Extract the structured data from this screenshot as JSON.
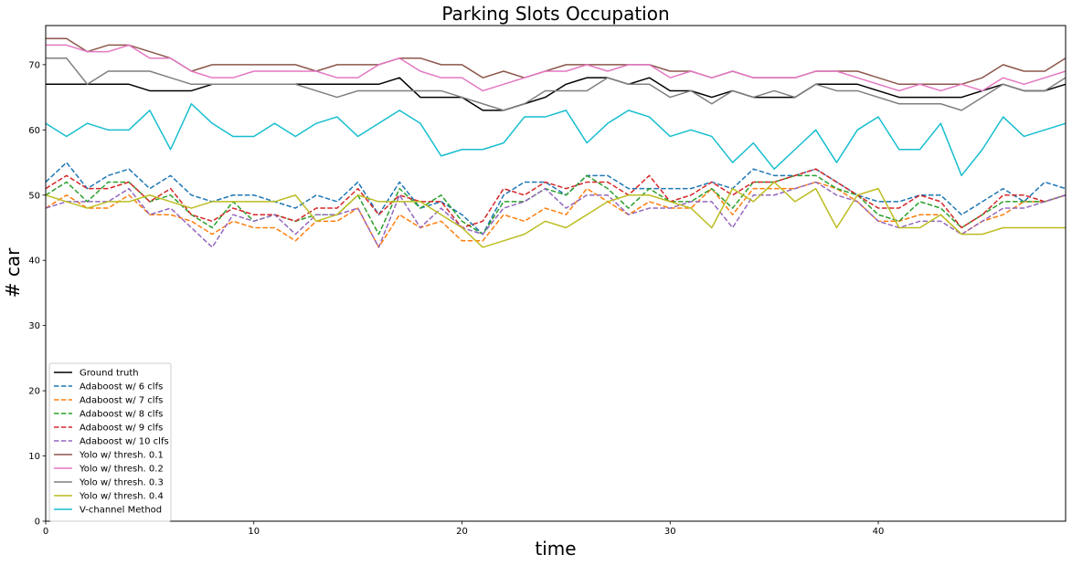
{
  "chart_data": {
    "type": "line",
    "title": "Parking Slots Occupation",
    "xlabel": "time",
    "ylabel": "# car",
    "xlim": [
      0,
      49
    ],
    "ylim": [
      0,
      76
    ],
    "xticks": [
      0,
      10,
      20,
      30,
      40
    ],
    "yticks": [
      0,
      10,
      20,
      30,
      40,
      50,
      60,
      70
    ],
    "grid": false,
    "legend_position": "lower-left",
    "x": [
      0,
      1,
      2,
      3,
      4,
      5,
      6,
      7,
      8,
      9,
      10,
      11,
      12,
      13,
      14,
      15,
      16,
      17,
      18,
      19,
      20,
      21,
      22,
      23,
      24,
      25,
      26,
      27,
      28,
      29,
      30,
      31,
      32,
      33,
      34,
      35,
      36,
      37,
      38,
      39,
      40,
      41,
      42,
      43,
      44,
      45,
      46,
      47,
      48,
      49
    ],
    "series": [
      {
        "name": "Ground truth",
        "color": "#000000",
        "dash": "solid",
        "values": [
          67,
          67,
          67,
          67,
          67,
          66,
          66,
          66,
          67,
          67,
          67,
          67,
          67,
          67,
          67,
          67,
          67,
          68,
          65,
          65,
          65,
          63,
          63,
          64,
          65,
          67,
          68,
          68,
          67,
          68,
          66,
          66,
          65,
          66,
          65,
          65,
          65,
          67,
          67,
          67,
          66,
          65,
          65,
          65,
          65,
          66,
          67,
          66,
          66,
          67
        ]
      },
      {
        "name": "Adaboost w/ 6 clfs",
        "color": "#1f77b4",
        "dash": "dashed",
        "values": [
          52,
          55,
          51,
          53,
          54,
          51,
          53,
          50,
          49,
          50,
          50,
          49,
          48,
          50,
          49,
          52,
          47,
          52,
          48,
          49,
          47,
          44,
          50,
          52,
          52,
          50,
          53,
          53,
          51,
          51,
          51,
          51,
          52,
          51,
          54,
          53,
          53,
          54,
          52,
          50,
          49,
          49,
          50,
          50,
          47,
          49,
          51,
          49,
          52,
          51
        ]
      },
      {
        "name": "Adaboost w/ 7 clfs",
        "color": "#ff7f0e",
        "dash": "dashed",
        "values": [
          48,
          50,
          48,
          48,
          50,
          47,
          47,
          46,
          44,
          46,
          45,
          45,
          43,
          46,
          46,
          48,
          42,
          47,
          45,
          46,
          43,
          43,
          47,
          46,
          48,
          47,
          51,
          49,
          47,
          49,
          48,
          48,
          51,
          47,
          51,
          51,
          51,
          52,
          51,
          49,
          46,
          46,
          47,
          47,
          44,
          46,
          47,
          49,
          49,
          50
        ]
      },
      {
        "name": "Adaboost w/ 8 clfs",
        "color": "#2ca02c",
        "dash": "dashed",
        "values": [
          50,
          52,
          49,
          52,
          52,
          49,
          50,
          47,
          45,
          49,
          46,
          47,
          46,
          47,
          47,
          50,
          44,
          51,
          48,
          50,
          46,
          44,
          49,
          49,
          51,
          50,
          53,
          51,
          48,
          51,
          49,
          49,
          51,
          48,
          52,
          52,
          53,
          53,
          51,
          50,
          47,
          46,
          49,
          48,
          45,
          47,
          49,
          49,
          49,
          50
        ]
      },
      {
        "name": "Adaboost w/ 9 clfs",
        "color": "#d62728",
        "dash": "dashed",
        "values": [
          51,
          53,
          51,
          51,
          52,
          49,
          51,
          47,
          46,
          48,
          47,
          47,
          46,
          48,
          48,
          51,
          47,
          50,
          49,
          49,
          45,
          46,
          51,
          50,
          52,
          51,
          52,
          52,
          50,
          53,
          49,
          50,
          52,
          50,
          52,
          52,
          53,
          54,
          52,
          50,
          48,
          48,
          50,
          49,
          45,
          47,
          50,
          50,
          49,
          50
        ]
      },
      {
        "name": "Adaboost w/ 10 clfs",
        "color": "#9467bd",
        "dash": "dashed",
        "values": [
          48,
          49,
          49,
          49,
          51,
          47,
          48,
          45,
          42,
          47,
          46,
          47,
          44,
          47,
          47,
          48,
          42,
          50,
          45,
          48,
          45,
          44,
          48,
          49,
          51,
          48,
          50,
          50,
          47,
          48,
          48,
          49,
          49,
          45,
          50,
          50,
          51,
          52,
          50,
          49,
          46,
          45,
          46,
          46,
          44,
          46,
          48,
          48,
          49,
          50
        ]
      },
      {
        "name": "Yolo w/ thresh. 0.1",
        "color": "#8c564b",
        "dash": "solid",
        "values": [
          74,
          74,
          72,
          73,
          73,
          72,
          71,
          69,
          70,
          70,
          70,
          70,
          70,
          69,
          70,
          70,
          70,
          71,
          71,
          70,
          70,
          68,
          69,
          68,
          69,
          70,
          70,
          70,
          70,
          70,
          69,
          69,
          68,
          69,
          68,
          68,
          68,
          69,
          69,
          69,
          68,
          67,
          67,
          67,
          67,
          68,
          70,
          69,
          69,
          71
        ]
      },
      {
        "name": "Yolo w/ thresh. 0.2",
        "color": "#e377c2",
        "dash": "solid",
        "values": [
          73,
          73,
          72,
          72,
          73,
          71,
          71,
          69,
          68,
          68,
          69,
          69,
          69,
          69,
          68,
          68,
          70,
          71,
          69,
          68,
          68,
          66,
          67,
          68,
          69,
          69,
          70,
          69,
          70,
          70,
          68,
          69,
          68,
          69,
          68,
          68,
          68,
          69,
          69,
          68,
          67,
          66,
          67,
          66,
          67,
          66,
          68,
          67,
          68,
          69
        ]
      },
      {
        "name": "Yolo w/ thresh. 0.3",
        "color": "#7f7f7f",
        "dash": "solid",
        "values": [
          71,
          71,
          67,
          69,
          69,
          69,
          68,
          67,
          67,
          67,
          67,
          67,
          67,
          66,
          65,
          66,
          66,
          66,
          66,
          66,
          65,
          64,
          63,
          64,
          66,
          66,
          66,
          68,
          67,
          67,
          65,
          66,
          64,
          66,
          65,
          66,
          65,
          67,
          66,
          66,
          65,
          64,
          64,
          64,
          63,
          65,
          67,
          66,
          66,
          68
        ]
      },
      {
        "name": "Yolo w/ thresh. 0.4",
        "color": "#bcbd22",
        "dash": "solid",
        "values": [
          50,
          49,
          48,
          49,
          49,
          50,
          49,
          48,
          49,
          49,
          49,
          49,
          50,
          46,
          47,
          50,
          49,
          49,
          49,
          47,
          45,
          42,
          43,
          44,
          46,
          45,
          47,
          49,
          50,
          50,
          49,
          48,
          45,
          51,
          49,
          52,
          49,
          51,
          45,
          50,
          51,
          45,
          45,
          47,
          44,
          44,
          45,
          45,
          45,
          45
        ]
      },
      {
        "name": "V-channel Method",
        "color": "#17becf",
        "dash": "solid",
        "values": [
          61,
          59,
          61,
          60,
          60,
          63,
          57,
          64,
          61,
          59,
          59,
          61,
          59,
          61,
          62,
          59,
          61,
          63,
          61,
          56,
          57,
          57,
          58,
          62,
          62,
          63,
          58,
          61,
          63,
          62,
          59,
          60,
          59,
          55,
          58,
          54,
          57,
          60,
          55,
          60,
          62,
          57,
          57,
          61,
          53,
          57,
          62,
          59,
          60,
          61
        ]
      }
    ]
  }
}
